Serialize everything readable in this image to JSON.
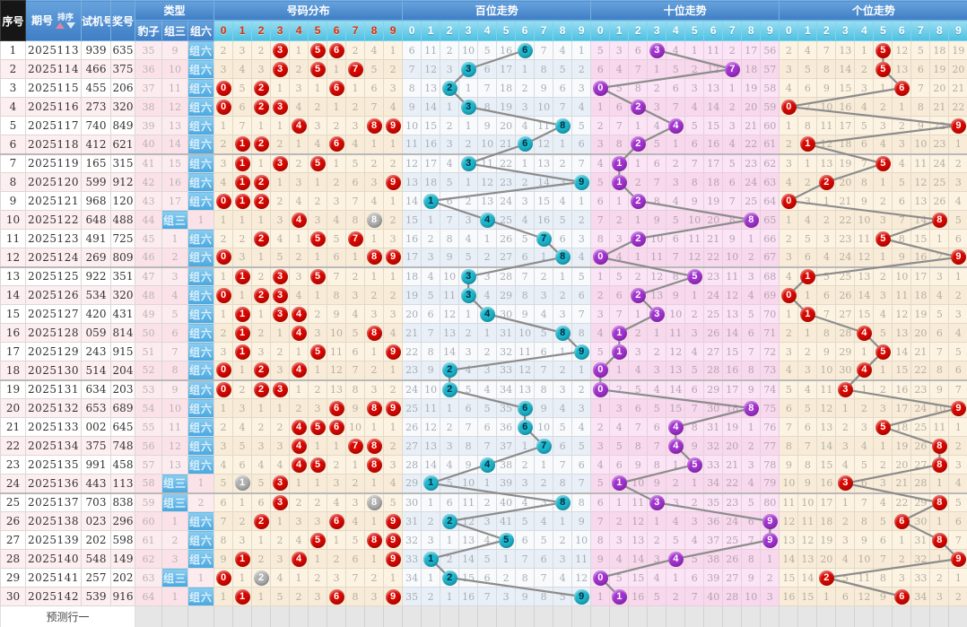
{
  "header": {
    "seq": "序号",
    "period": "期号",
    "sort_label": "排序",
    "test": "试机号",
    "prize": "奖号",
    "type": "类型",
    "baozi": "豹子",
    "zusan": "组三",
    "zuliu": "组六",
    "sections": [
      {
        "key": "dist",
        "title": "号码分布",
        "digits": [
          "0",
          "1",
          "2",
          "3",
          "4",
          "5",
          "6",
          "7",
          "8",
          "9"
        ],
        "digit_style": "red"
      },
      {
        "key": "bai",
        "title": "百位走势",
        "digits": [
          "0",
          "1",
          "2",
          "3",
          "4",
          "5",
          "6",
          "7",
          "8",
          "9"
        ],
        "digit_style": "white"
      },
      {
        "key": "shi",
        "title": "十位走势",
        "digits": [
          "0",
          "1",
          "2",
          "3",
          "4",
          "5",
          "6",
          "7",
          "8",
          "9"
        ],
        "digit_style": "white"
      },
      {
        "key": "ge",
        "title": "个位走势",
        "digits": [
          "0",
          "1",
          "2",
          "3",
          "4",
          "5",
          "6",
          "7",
          "8",
          "9"
        ],
        "digit_style": "white"
      }
    ]
  },
  "labels": {
    "zusan": "组三",
    "zuliu": "组六"
  },
  "footer": {
    "predict_label": "预测行一"
  },
  "colors": {
    "header_blue": "#4a8fd0",
    "digit_header_cyan": "#5cc6e6",
    "seq_header_black": "#161616",
    "ball_red": "#d80700",
    "ball_teal": "#1db6cd",
    "ball_purple": "#a232cf",
    "ball_gray": "#b1b1b1",
    "trend_line": "#8c8c8c",
    "dist_bg": "#fdf3e2",
    "bai_bg": "#eff4f9",
    "shi_bg": "#fbe4f5",
    "ge_bg": "#fdf3e2"
  },
  "rows": [
    {
      "s": "1",
      "p": "2025113",
      "t": "939",
      "w": "635",
      "bz": "35",
      "z3": "9",
      "z6": "L",
      "dist": "2,3,2,*3,1,*5,*6,2,4,1",
      "bai": "6,11,2,10,5,16,*6,7,4,1",
      "shi": "5,3,6,*3,4,1,11,2,17,56",
      "ge": "2,4,7,13,1,*5,12,5,18,19"
    },
    {
      "s": "2",
      "p": "2025114",
      "t": "466",
      "w": "375",
      "bz": "36",
      "z3": "10",
      "z6": "L",
      "dist": "3,4,3,*3,2,*5,1,*7,5,2",
      "bai": "7,12,3,*3,6,17,1,8,5,2",
      "shi": "6,4,7,1,5,2,12,*7,18,57",
      "ge": "3,5,8,14,2,*5,13,6,19,20"
    },
    {
      "s": "3",
      "p": "2025115",
      "t": "455",
      "w": "206",
      "bz": "37",
      "z3": "11",
      "z6": "L",
      "dist": "*0,5,*2,1,3,1,*6,1,6,3",
      "bai": "8,13,*2,1,7,18,2,9,6,3",
      "shi": "*0,5,8,2,6,3,13,1,19,58",
      "ge": "4,6,9,15,3,1,*6,7,20,21"
    },
    {
      "s": "4",
      "p": "2025116",
      "t": "273",
      "w": "320",
      "bz": "38",
      "z3": "12",
      "z6": "L",
      "dist": "*0,6,*2,*3,4,2,1,2,7,4",
      "bai": "9,14,1,*3,8,19,3,10,7,4",
      "shi": "1,6,*2,3,7,4,14,2,20,59",
      "ge": "*0,7,10,16,4,2,1,8,21,22"
    },
    {
      "s": "5",
      "p": "2025117",
      "t": "740",
      "w": "849",
      "bz": "39",
      "z3": "13",
      "z6": "L",
      "dist": "1,7,1,1,*4,3,2,3,*8,*9",
      "bai": "10,15,2,1,9,20,4,11,*8,5",
      "shi": "2,7,1,4,*4,5,15,3,21,60",
      "ge": "1,8,11,17,5,3,2,9,22,*9"
    },
    {
      "s": "6",
      "p": "2025118",
      "t": "412",
      "w": "621",
      "bz": "40",
      "z3": "14",
      "z6": "L",
      "dist": "2,*1,*2,2,1,4,*6,4,1,1",
      "bai": "11,16,3,2,10,21,*6,12,1,6",
      "shi": "3,8,*2,5,1,6,16,4,22,61",
      "ge": "2,*1,12,18,6,4,3,10,23,1"
    },
    {
      "s": "7",
      "p": "2025119",
      "t": "165",
      "w": "315",
      "bz": "41",
      "z3": "15",
      "z6": "L",
      "dist": "3,*1,1,*3,2,*5,1,5,2,2",
      "bai": "12,17,4,*3,11,22,1,13,2,7",
      "shi": "4,*1,1,6,2,7,17,5,23,62",
      "ge": "3,1,13,19,7,*5,4,11,24,2"
    },
    {
      "s": "8",
      "p": "2025120",
      "t": "599",
      "w": "912",
      "bz": "42",
      "z3": "16",
      "z6": "L",
      "dist": "4,*1,*2,1,3,1,2,6,3,*9",
      "bai": "13,18,5,1,12,23,2,14,3,*9",
      "shi": "5,*1,2,7,3,8,18,6,24,63",
      "ge": "4,2,*2,20,8,1,5,12,25,3"
    },
    {
      "s": "9",
      "p": "2025121",
      "t": "968",
      "w": "120",
      "bz": "43",
      "z3": "17",
      "z6": "L",
      "dist": "*0,*1,*2,2,4,2,3,7,4,1",
      "bai": "14,*1,6,2,13,24,3,15,4,1",
      "shi": "6,1,*2,8,4,9,19,7,25,64",
      "ge": "*0,3,1,21,9,2,6,13,26,4"
    },
    {
      "s": "10",
      "p": "2025122",
      "t": "648",
      "w": "488",
      "bz": "44",
      "z3": "L",
      "z6": "1",
      "dist": "1,1,1,3,*4,3,4,8,#8,2",
      "bai": "15,1,7,3,*4,25,4,16,5,2",
      "shi": "7,2,1,9,5,10,20,8,*8,65",
      "ge": "1,4,2,22,10,3,7,14,*8,5"
    },
    {
      "s": "11",
      "p": "2025123",
      "t": "491",
      "w": "725",
      "bz": "45",
      "z3": "1",
      "z6": "L",
      "dist": "2,2,*2,4,1,*5,5,*7,1,3",
      "bai": "16,2,8,4,1,26,5,*7,6,3",
      "shi": "8,3,*2,10,6,11,21,9,1,66",
      "ge": "2,5,3,23,11,*5,8,15,1,6"
    },
    {
      "s": "12",
      "p": "2025124",
      "t": "269",
      "w": "809",
      "bz": "46",
      "z3": "2",
      "z6": "L",
      "dist": "*0,3,1,5,2,1,6,1,*8,*9",
      "bai": "17,3,9,5,2,27,6,1,*8,4",
      "shi": "*0,4,1,11,7,12,22,10,2,67",
      "ge": "3,6,4,24,12,1,9,16,2,*9"
    },
    {
      "s": "13",
      "p": "2025125",
      "t": "922",
      "w": "351",
      "bz": "47",
      "z3": "3",
      "z6": "L",
      "dist": "1,*1,2,*3,3,*5,7,2,1,1",
      "bai": "18,4,10,*3,3,28,7,2,1,5",
      "shi": "1,5,2,12,8,*5,23,11,3,68",
      "ge": "4,*1,5,25,13,2,10,17,3,1"
    },
    {
      "s": "14",
      "p": "2025126",
      "t": "534",
      "w": "320",
      "bz": "48",
      "z3": "4",
      "z6": "L",
      "dist": "*0,1,*2,*3,4,1,8,3,2,2",
      "bai": "19,5,11,*3,4,29,8,3,2,6",
      "shi": "2,6,*2,13,9,1,24,12,4,69",
      "ge": "*0,1,6,26,14,3,11,18,4,2"
    },
    {
      "s": "15",
      "p": "2025127",
      "t": "420",
      "w": "431",
      "bz": "49",
      "z3": "5",
      "z6": "L",
      "dist": "1,*1,1,*3,*4,2,9,4,3,3",
      "bai": "20,6,12,1,*4,30,9,4,3,7",
      "shi": "3,7,1,*3,10,2,25,13,5,70",
      "ge": "1,*1,7,27,15,4,12,19,5,3"
    },
    {
      "s": "16",
      "p": "2025128",
      "t": "059",
      "w": "814",
      "bz": "50",
      "z3": "6",
      "z6": "L",
      "dist": "2,*1,2,1,*4,3,10,5,*8,4",
      "bai": "21,7,13,2,1,31,10,5,*8,8",
      "shi": "4,*1,2,1,11,3,26,14,6,71",
      "ge": "2,1,8,28,*4,5,13,20,6,4"
    },
    {
      "s": "17",
      "p": "2025129",
      "t": "243",
      "w": "915",
      "bz": "51",
      "z3": "7",
      "z6": "L",
      "dist": "3,*1,3,2,1,*5,11,6,1,*9",
      "bai": "22,8,14,3,2,32,11,6,1,*9",
      "shi": "5,*1,3,2,12,4,27,15,7,72",
      "ge": "3,2,9,29,1,*5,14,21,7,5"
    },
    {
      "s": "18",
      "p": "2025130",
      "t": "514",
      "w": "204",
      "bz": "52",
      "z3": "8",
      "z6": "L",
      "dist": "*0,1,*2,3,*4,1,12,7,2,1",
      "bai": "23,9,*2,4,3,33,12,7,2,1",
      "shi": "*0,1,4,3,13,5,28,16,8,73",
      "ge": "4,3,10,30,*4,1,15,22,8,6"
    },
    {
      "s": "19",
      "p": "2025131",
      "t": "634",
      "w": "203",
      "bz": "53",
      "z3": "9",
      "z6": "L",
      "dist": "*0,2,*2,*3,1,2,13,8,3,2",
      "bai": "24,10,*2,5,4,34,13,8,3,2",
      "shi": "*0,2,5,4,14,6,29,17,9,74",
      "ge": "5,4,11,*3,1,2,16,23,9,7"
    },
    {
      "s": "20",
      "p": "2025132",
      "t": "653",
      "w": "689",
      "bz": "54",
      "z3": "10",
      "z6": "L",
      "dist": "1,3,1,1,2,3,*6,9,*8,*9",
      "bai": "25,11,1,6,5,35,*6,9,4,3",
      "shi": "1,3,6,5,15,7,30,18,*8,75",
      "ge": "6,5,12,1,2,3,17,24,10,*9"
    },
    {
      "s": "21",
      "p": "2025133",
      "t": "002",
      "w": "645",
      "bz": "55",
      "z3": "11",
      "z6": "L",
      "dist": "2,4,2,2,*4,*5,*6,10,1,1",
      "bai": "26,12,2,7,6,36,*6,10,5,4",
      "shi": "2,4,7,6,*4,8,31,19,1,76",
      "ge": "7,6,13,2,3,*5,18,25,11,1"
    },
    {
      "s": "22",
      "p": "2025134",
      "t": "375",
      "w": "748",
      "bz": "56",
      "z3": "12",
      "z6": "L",
      "dist": "3,5,3,3,*4,1,1,*7,*8,2",
      "bai": "27,13,3,8,7,37,1,*7,6,5",
      "shi": "3,5,8,7,*4,9,32,20,2,77",
      "ge": "8,7,14,3,4,1,19,26,*8,2"
    },
    {
      "s": "23",
      "p": "2025135",
      "t": "991",
      "w": "458",
      "bz": "57",
      "z3": "13",
      "z6": "L",
      "dist": "4,6,4,4,*4,*5,2,1,*8,3",
      "bai": "28,14,4,9,*4,38,2,1,7,6",
      "shi": "4,6,9,8,1,*5,33,21,3,78",
      "ge": "9,8,15,4,5,2,20,27,*8,3"
    },
    {
      "s": "24",
      "p": "2025136",
      "t": "443",
      "w": "113",
      "bz": "58",
      "z3": "L",
      "z6": "1",
      "dist": "5,#1,5,*3,1,1,3,2,1,4",
      "bai": "29,*1,5,10,1,39,3,2,8,7",
      "shi": "5,*1,10,9,2,1,34,22,4,79",
      "ge": "10,9,16,*3,6,3,21,28,1,4"
    },
    {
      "s": "25",
      "p": "2025137",
      "t": "703",
      "w": "838",
      "bz": "59",
      "z3": "L",
      "z6": "2",
      "dist": "6,1,6,*3,2,2,4,3,#8,5",
      "bai": "30,1,6,11,2,40,4,3,*8,8",
      "shi": "6,1,11,*3,3,2,35,23,5,80",
      "ge": "11,10,17,1,7,4,22,29,*8,5"
    },
    {
      "s": "26",
      "p": "2025138",
      "t": "023",
      "w": "296",
      "bz": "60",
      "z3": "1",
      "z6": "L",
      "dist": "7,2,*2,1,3,3,*6,4,1,*9",
      "bai": "31,2,*2,12,3,41,5,4,1,9",
      "shi": "7,2,12,1,4,3,36,24,6,*9",
      "ge": "12,11,18,2,8,5,*6,30,1,6"
    },
    {
      "s": "27",
      "p": "2025139",
      "t": "202",
      "w": "598",
      "bz": "61",
      "z3": "2",
      "z6": "L",
      "dist": "8,3,1,2,4,*5,1,5,*8,*9",
      "bai": "32,3,1,13,4,*5,6,5,2,10",
      "shi": "8,3,13,2,5,4,37,25,7,*9",
      "ge": "13,12,19,3,9,6,1,31,*8,7"
    },
    {
      "s": "28",
      "p": "2025140",
      "t": "548",
      "w": "149",
      "bz": "62",
      "z3": "3",
      "z6": "L",
      "dist": "9,*1,2,3,*4,1,2,6,1,*9",
      "bai": "33,*1,2,14,5,1,7,6,3,11",
      "shi": "9,4,14,3,*4,5,38,26,8,1",
      "ge": "14,13,20,4,10,7,2,32,1,*9"
    },
    {
      "s": "29",
      "p": "2025141",
      "t": "257",
      "w": "202",
      "bz": "63",
      "z3": "L",
      "z6": "1",
      "dist": "*0,1,#2,4,1,2,3,7,2,1",
      "bai": "34,1,*2,15,6,2,8,7,4,12",
      "shi": "*0,5,15,4,1,6,39,27,9,2",
      "ge": "15,14,*2,5,11,8,3,33,2,1"
    },
    {
      "s": "30",
      "p": "2025142",
      "t": "539",
      "w": "916",
      "bz": "64",
      "z3": "1",
      "z6": "L",
      "dist": "1,*1,1,5,2,3,*6,8,3,*9",
      "bai": "35,2,1,16,7,3,9,8,5,*9",
      "shi": "1,*1,16,5,2,7,40,28,10,3",
      "ge": "16,15,1,6,12,9,*6,34,3,2"
    }
  ]
}
